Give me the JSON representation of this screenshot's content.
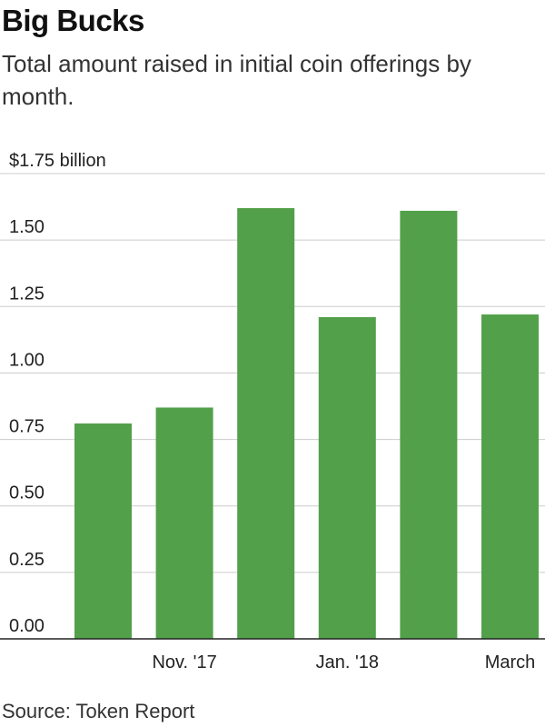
{
  "title": "Big Bucks",
  "subtitle": "Total amount raised in initial coin offerings by month.",
  "source": "Source: Token Report",
  "chart_data": {
    "type": "bar",
    "categories": [
      "",
      "Nov. '17",
      "",
      "Jan. '18",
      "",
      "March"
    ],
    "values": [
      0.81,
      0.87,
      1.62,
      1.21,
      1.61,
      1.22
    ],
    "ylim": [
      0,
      1.75
    ],
    "yticks": [
      0,
      0.25,
      0.5,
      0.75,
      1.0,
      1.25,
      1.5,
      1.75
    ],
    "ytick_labels": [
      "0.00",
      "0.25",
      "0.50",
      "0.75",
      "1.00",
      "1.25",
      "1.50",
      "$1.75 billion"
    ],
    "bar_color": "#52a04a",
    "gridline_color": "#cccccc",
    "grid": true
  }
}
